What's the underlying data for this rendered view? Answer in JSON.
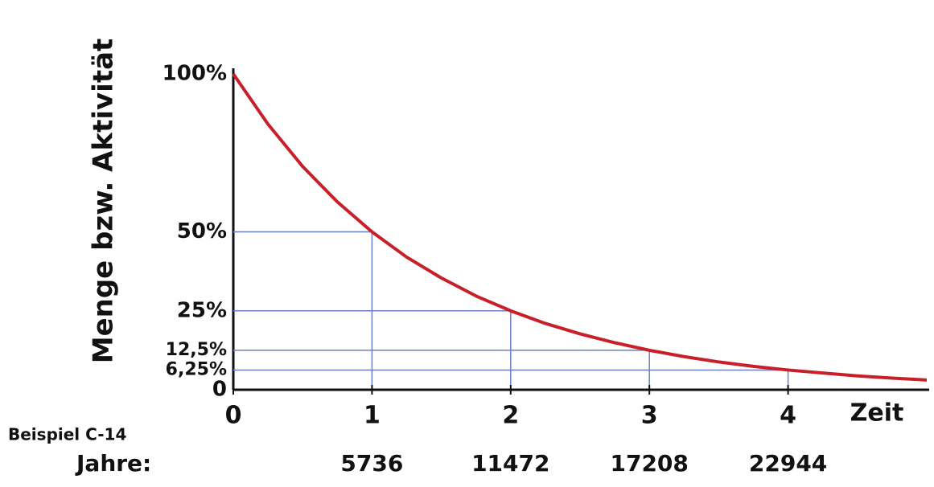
{
  "chart_data": {
    "type": "line",
    "y_label": "Menge bzw. Aktivität",
    "x_label": "Zeit",
    "annotation": "Beispiel C-14",
    "year_row_label": "Jahre:",
    "year_labels": [
      5736,
      11472,
      17208,
      22944
    ],
    "x": [
      0,
      0.25,
      0.5,
      0.75,
      1,
      1.25,
      1.5,
      1.75,
      2,
      2.25,
      2.5,
      2.75,
      3,
      3.25,
      3.5,
      3.75,
      4,
      4.25,
      4.5,
      4.75,
      5
    ],
    "series": [
      {
        "color": "#c8202a",
        "values": [
          100,
          84.1,
          70.7,
          59.5,
          50,
          42.0,
          35.4,
          29.7,
          25,
          21.0,
          17.7,
          14.9,
          12.5,
          10.5,
          8.8,
          7.4,
          6.25,
          5.3,
          4.4,
          3.7,
          3.1
        ]
      }
    ],
    "xlim": [
      0,
      5
    ],
    "xticks": [
      0,
      1,
      2,
      3,
      4
    ],
    "ylim": [
      0,
      100
    ],
    "yticks": [
      0,
      {
        "value": 6.25,
        "label": "6,25%"
      },
      {
        "value": 12.5,
        "label": "12,5%"
      },
      {
        "value": 25,
        "label": "25%"
      },
      {
        "value": 50,
        "label": "50%"
      },
      {
        "value": 100,
        "label": "100%"
      }
    ],
    "guide_color": "#6b7fc4"
  }
}
